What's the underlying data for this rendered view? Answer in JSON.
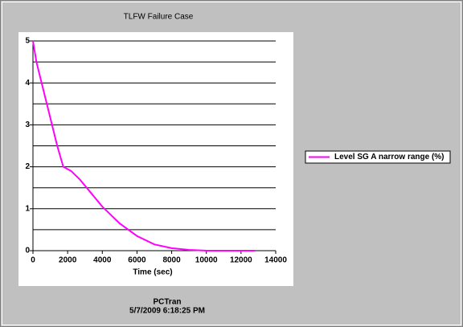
{
  "chart_data": {
    "type": "line",
    "title": "TLFW Failure Case",
    "x_label": "Time (sec)",
    "footer": [
      "PCTran",
      "5/7/2009 6:18:25 PM"
    ],
    "x": [
      0,
      200,
      500,
      800,
      1100,
      1400,
      1750,
      2200,
      2700,
      3200,
      4000,
      5000,
      6000,
      7000,
      8000,
      9000,
      10000,
      11000,
      12000,
      12800
    ],
    "series": [
      {
        "name": "Level SG A narrow range (%)",
        "color": "#ff00ff",
        "values": [
          5,
          4.5,
          4.0,
          3.5,
          3.0,
          2.5,
          2.0,
          1.9,
          1.7,
          1.45,
          1.05,
          0.65,
          0.35,
          0.15,
          0.06,
          0.02,
          0,
          0,
          0,
          0
        ]
      }
    ],
    "xlim": [
      0,
      14000
    ],
    "xticks": [
      0,
      2000,
      4000,
      6000,
      8000,
      10000,
      12000,
      14000
    ],
    "ylim": [
      0,
      5
    ],
    "yticks": [
      0,
      1,
      2,
      3,
      4,
      5
    ],
    "y_minor_ticks": [
      0.5,
      1.5,
      2.5,
      3.5,
      4.5
    ],
    "grid": true,
    "legend": "right"
  }
}
